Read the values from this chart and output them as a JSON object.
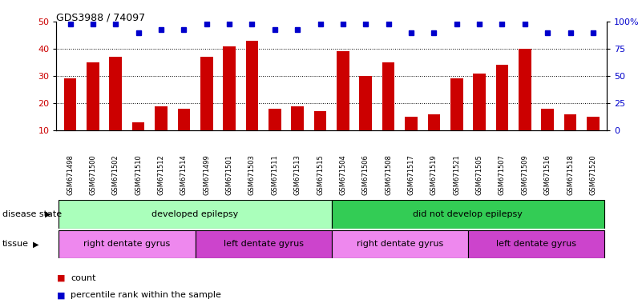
{
  "title": "GDS3988 / 74097",
  "samples": [
    "GSM671498",
    "GSM671500",
    "GSM671502",
    "GSM671510",
    "GSM671512",
    "GSM671514",
    "GSM671499",
    "GSM671501",
    "GSM671503",
    "GSM671511",
    "GSM671513",
    "GSM671515",
    "GSM671504",
    "GSM671506",
    "GSM671508",
    "GSM671517",
    "GSM671519",
    "GSM671521",
    "GSM671505",
    "GSM671507",
    "GSM671509",
    "GSM671516",
    "GSM671518",
    "GSM671520"
  ],
  "bar_values": [
    29,
    35,
    37,
    13,
    19,
    18,
    37,
    41,
    43,
    18,
    19,
    17,
    39,
    30,
    35,
    15,
    16,
    29,
    31,
    34,
    40,
    18,
    16,
    15
  ],
  "dot_values_left_scale": [
    49,
    49,
    49,
    46,
    47,
    47,
    49,
    49,
    49,
    47,
    47,
    49,
    49,
    49,
    49,
    46,
    46,
    49,
    49,
    49,
    49,
    46,
    46,
    46
  ],
  "bar_color": "#cc0000",
  "dot_color": "#0000cc",
  "ylim_left": [
    10,
    50
  ],
  "ylim_right": [
    0,
    100
  ],
  "yticks_left": [
    10,
    20,
    30,
    40,
    50
  ],
  "yticks_right": [
    0,
    25,
    50,
    75,
    100
  ],
  "ytick_labels_right": [
    "0",
    "25",
    "50",
    "75",
    "100%"
  ],
  "grid_values": [
    20,
    30,
    40
  ],
  "disease_groups": [
    {
      "label": "developed epilepsy",
      "start": 0,
      "end": 12,
      "color": "#aaffbb"
    },
    {
      "label": "did not develop epilepsy",
      "start": 12,
      "end": 24,
      "color": "#33cc55"
    }
  ],
  "tissue_groups": [
    {
      "label": "right dentate gyrus",
      "start": 0,
      "end": 6,
      "color": "#ee88ee"
    },
    {
      "label": "left dentate gyrus",
      "start": 6,
      "end": 12,
      "color": "#cc44cc"
    },
    {
      "label": "right dentate gyrus",
      "start": 12,
      "end": 18,
      "color": "#ee88ee"
    },
    {
      "label": "left dentate gyrus",
      "start": 18,
      "end": 24,
      "color": "#cc44cc"
    }
  ],
  "disease_state_label": "disease state",
  "tissue_label": "tissue",
  "legend_bar_label": "count",
  "legend_dot_label": "percentile rank within the sample",
  "xtick_bg_color": "#d8d8d8",
  "fig_width": 8.01,
  "fig_height": 3.84,
  "dpi": 100
}
